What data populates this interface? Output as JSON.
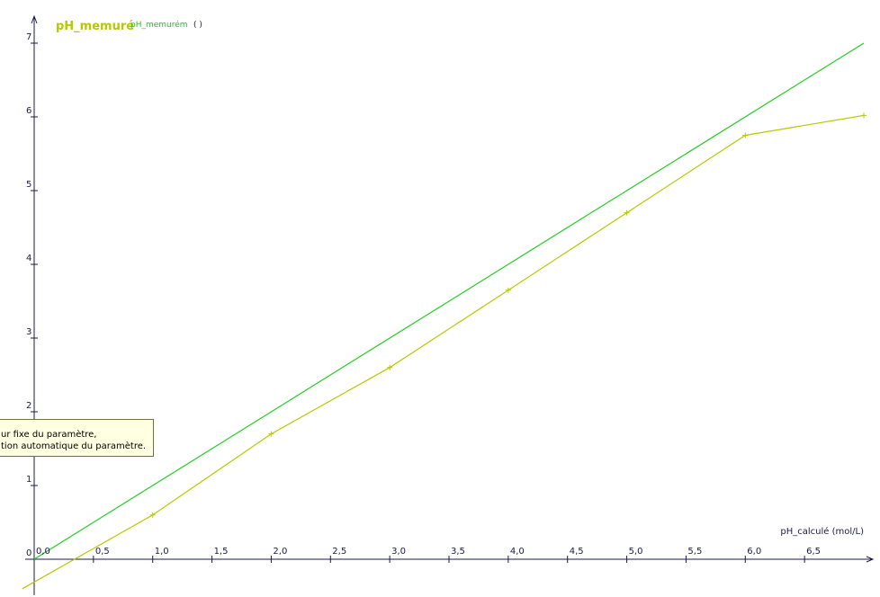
{
  "chart_data": {
    "type": "line",
    "title": "pH_memuré",
    "xlabel": "pH_calculé (mol/L)",
    "ylabel": "",
    "xlim": [
      0,
      7
    ],
    "ylim": [
      0,
      7
    ],
    "x_ticks": [
      "0,0",
      "0,5",
      "1,0",
      "1,5",
      "2,0",
      "2,5",
      "3,0",
      "3,5",
      "4,0",
      "4,5",
      "5,0",
      "5,5",
      "6,0",
      "6,5"
    ],
    "y_ticks": [
      "0",
      "1",
      "2",
      "3",
      "4",
      "5",
      "6",
      "7"
    ],
    "legend": {
      "title": "pH_memuré",
      "series_label": "pH_memurém",
      "unit": "( )"
    },
    "series": [
      {
        "color": "#22cc22",
        "x": [
          0,
          7
        ],
        "y": [
          0,
          7
        ]
      },
      {
        "color": "#b9c800",
        "markers": true,
        "x": [
          -0.1,
          1.0,
          2.0,
          3.0,
          4.0,
          5.0,
          6.0,
          7.0
        ],
        "y": [
          -0.4,
          0.6,
          1.7,
          2.6,
          3.65,
          4.7,
          5.75,
          6.02
        ]
      }
    ]
  },
  "tooltip": {
    "line1": "ur fixe du paramètre,",
    "line2": "tion automatique du paramètre."
  }
}
